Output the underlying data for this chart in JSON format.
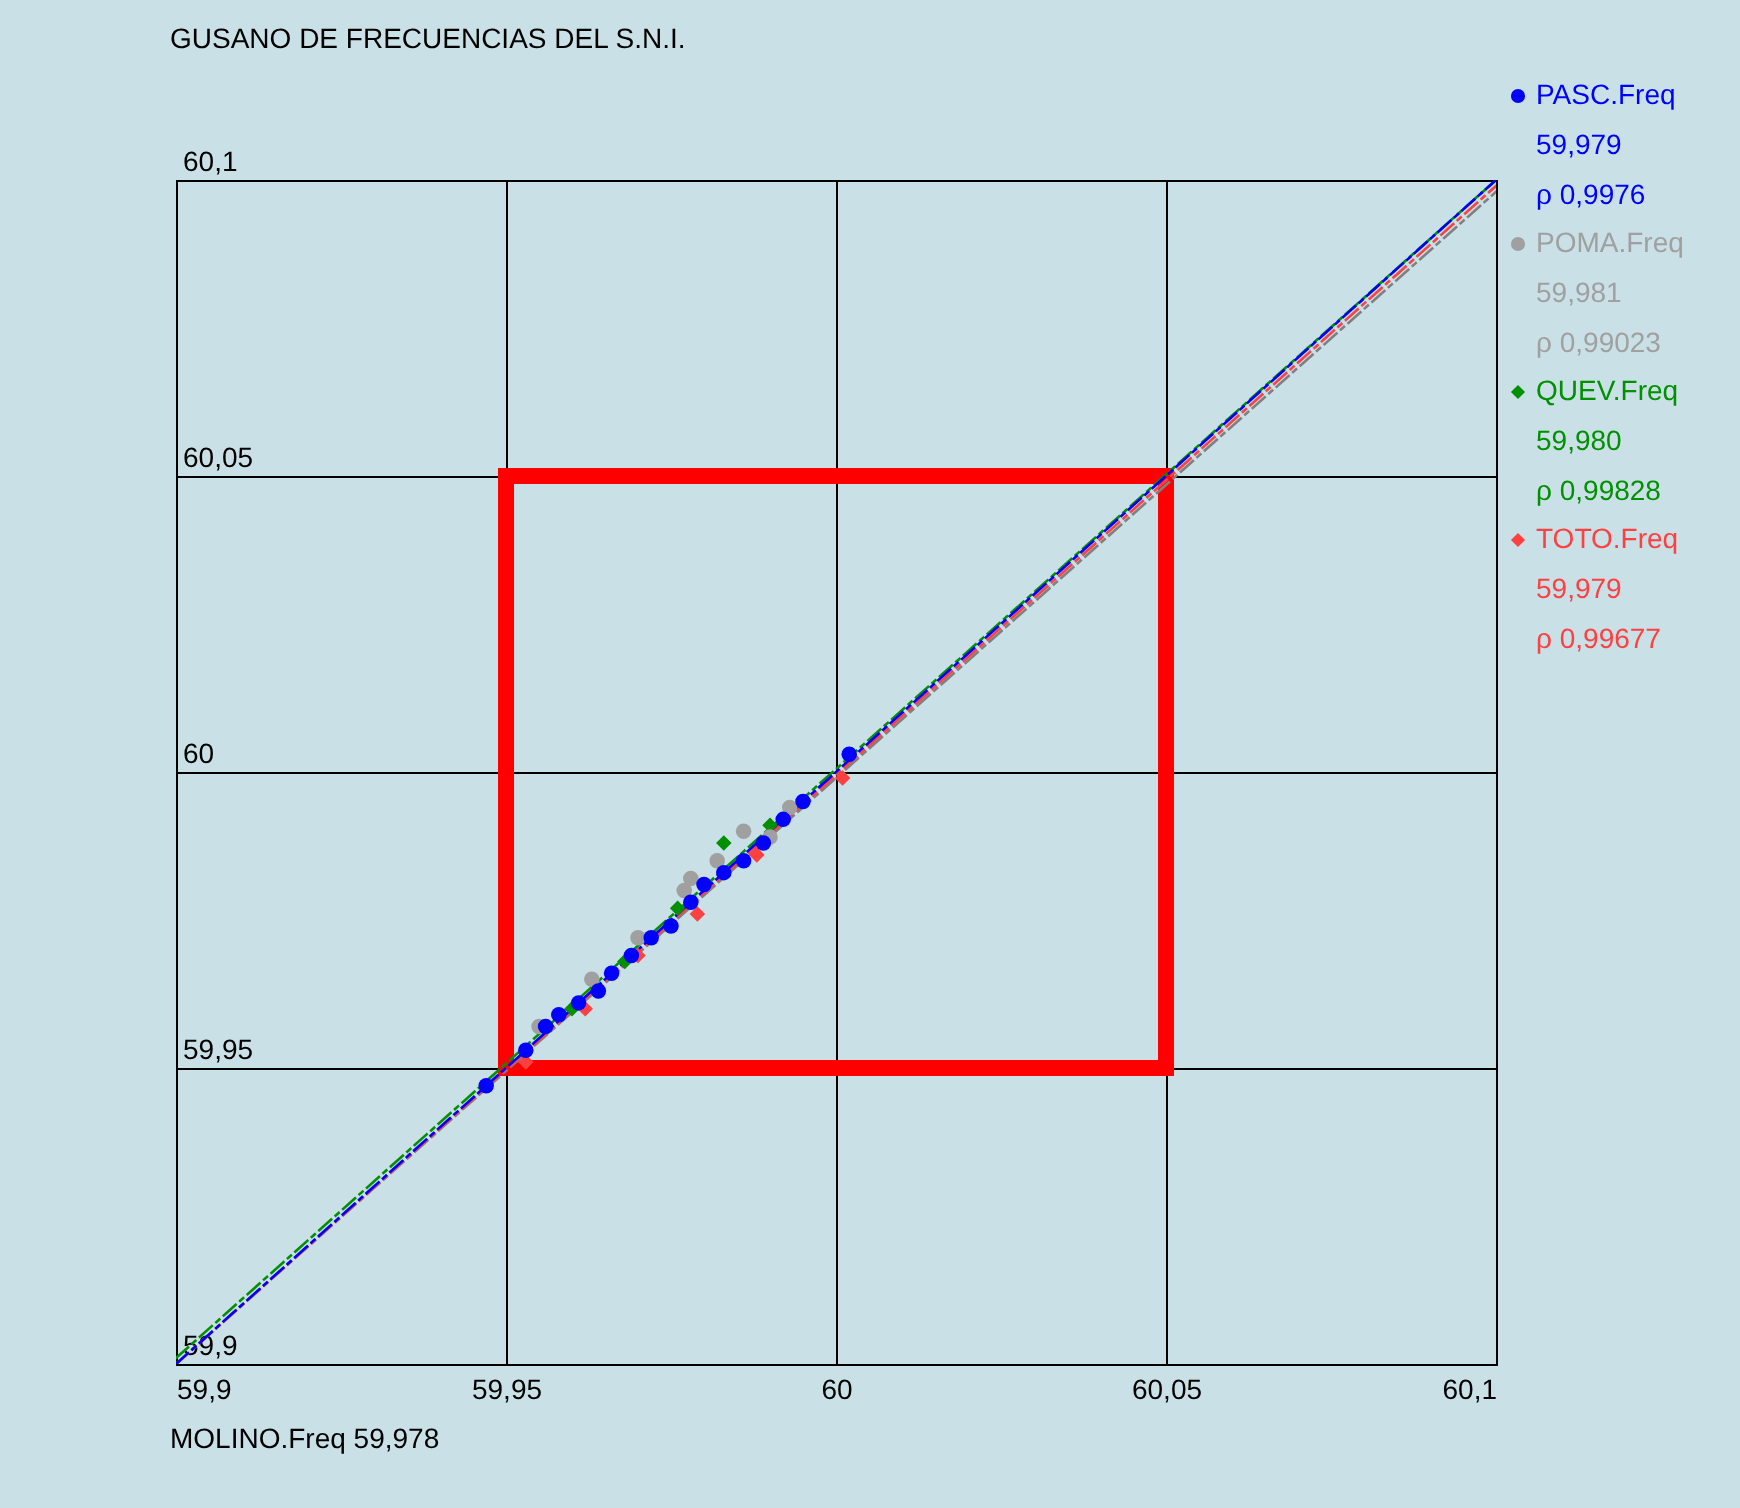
{
  "chart_data": {
    "type": "scatter",
    "title": "GUSANO DE FRECUENCIAS DEL S.N.I.",
    "xlabel": "MOLINO.Freq 59,978",
    "xlim": [
      59.9,
      60.1
    ],
    "ylim": [
      59.9,
      60.1
    ],
    "xticks": [
      {
        "value": 59.9,
        "label": "59,9"
      },
      {
        "value": 59.95,
        "label": "59,95"
      },
      {
        "value": 60,
        "label": "60"
      },
      {
        "value": 60.05,
        "label": "60,05"
      },
      {
        "value": 60.1,
        "label": "60,1"
      }
    ],
    "yticks": [
      {
        "value": 59.9,
        "label": "59,9"
      },
      {
        "value": 59.95,
        "label": "59,95"
      },
      {
        "value": 60,
        "label": "60"
      },
      {
        "value": 60.05,
        "label": "60,05"
      },
      {
        "value": 60.1,
        "label": "60,1"
      }
    ],
    "grid": true,
    "legend": "right",
    "annotations": [
      "59,979",
      "ρ 0,9976",
      "59,981",
      "ρ 0,99023",
      "59,980",
      "ρ 0,99828",
      "59,979",
      "ρ 0,99677"
    ],
    "series": [
      {
        "name": "PASC.Freq",
        "color": "#0000ff",
        "marker": "circle",
        "x": [
          59.947,
          59.953,
          59.956,
          59.958,
          59.961,
          59.964,
          59.966,
          59.969,
          59.972,
          59.975,
          59.978,
          59.98,
          59.983,
          59.986,
          59.989,
          59.992,
          59.995,
          60.002
        ],
        "values": [
          59.947,
          59.953,
          59.957,
          59.959,
          59.961,
          59.963,
          59.966,
          59.969,
          59.972,
          59.974,
          59.978,
          59.981,
          59.983,
          59.985,
          59.988,
          59.992,
          59.995,
          60.003
        ]
      },
      {
        "name": "POMA.Freq",
        "color": "#a0a0a0",
        "marker": "circle",
        "x": [
          59.955,
          59.963,
          59.97,
          59.977,
          59.982,
          59.986,
          59.99,
          59.993,
          59.978
        ],
        "values": [
          59.957,
          59.965,
          59.972,
          59.98,
          59.985,
          59.99,
          59.989,
          59.994,
          59.982
        ]
      },
      {
        "name": "QUEV.Freq",
        "color": "#009000",
        "marker": "diamond",
        "x": [
          59.96,
          59.968,
          59.976,
          59.983,
          59.99
        ],
        "values": [
          59.96,
          59.968,
          59.977,
          59.988,
          59.991
        ]
      },
      {
        "name": "TOTO.Freq",
        "color": "#ff4040",
        "marker": "diamond",
        "x": [
          59.953,
          59.962,
          59.97,
          59.979,
          59.988,
          60.001
        ],
        "values": [
          59.951,
          59.96,
          59.969,
          59.976,
          59.986,
          59.999
        ]
      },
      {
        "type": "line",
        "color": "#0000ff",
        "line_style": "dashed",
        "x": [
          59.9,
          60.1
        ],
        "values": [
          59.9,
          60.1
        ]
      },
      {
        "type": "line",
        "color": "#009000",
        "line_style": "dashed",
        "x": [
          59.9,
          60.1
        ],
        "values": [
          59.901,
          60.1
        ]
      },
      {
        "type": "line",
        "color": "#ff4040",
        "line_style": "dashed",
        "x": [
          59.9,
          60.1
        ],
        "values": [
          59.9,
          60.099
        ]
      },
      {
        "type": "line",
        "color": "#808080",
        "line_style": "dashed",
        "x": [
          59.9,
          60.1
        ],
        "values": [
          59.9,
          60.098
        ]
      },
      {
        "type": "line",
        "color": "#ff0000",
        "line_style": "solid",
        "x": [
          59.95,
          59.95
        ],
        "values": [
          59.95,
          60.05
        ]
      },
      {
        "type": "line",
        "color": "#ff0000",
        "line_style": "solid",
        "x": [
          59.95,
          60.05
        ],
        "values": [
          60.05,
          60.05
        ]
      },
      {
        "type": "line",
        "color": "#ff0000",
        "line_style": "solid",
        "x": [
          60.05,
          60.05
        ],
        "values": [
          59.95,
          60.05
        ]
      },
      {
        "type": "line",
        "color": "#ff0000",
        "line_style": "solid",
        "x": [
          59.95,
          60.05
        ],
        "values": [
          59.95,
          59.95
        ]
      }
    ]
  }
}
